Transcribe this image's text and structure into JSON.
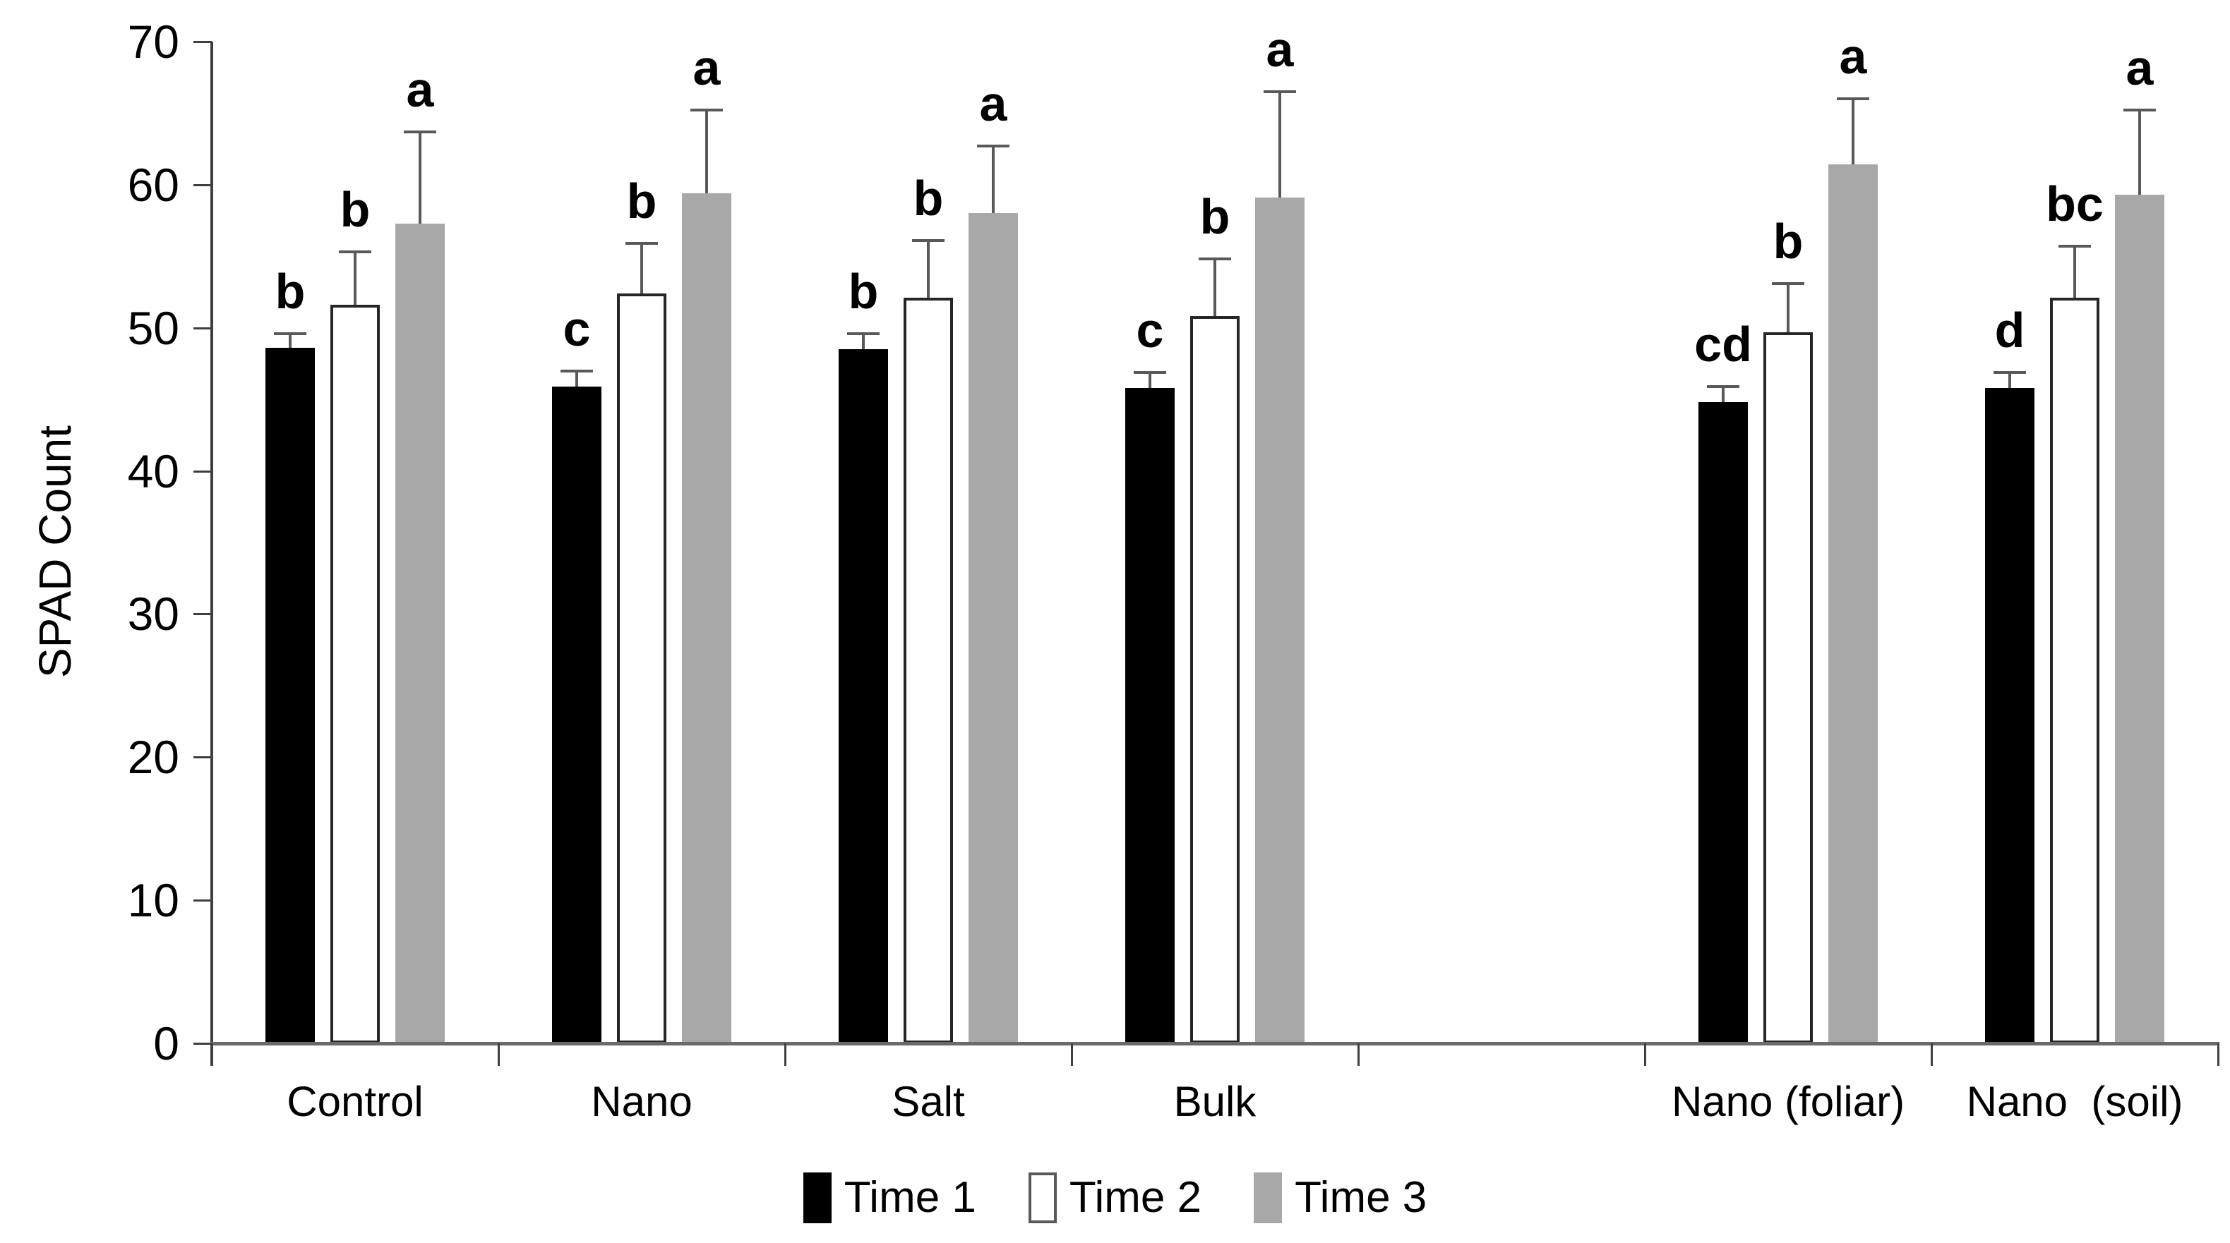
{
  "chart_data": {
    "type": "bar",
    "title": "",
    "ylabel": "SPAD Count",
    "xlabel": "",
    "ylim": [
      0,
      70
    ],
    "yticks": [
      0,
      10,
      20,
      30,
      40,
      50,
      60,
      70
    ],
    "grid": false,
    "legend_position": "bottom",
    "categories": [
      "Control",
      "Nano",
      "Salt",
      "Bulk",
      "Nano (foliar)",
      "Nano  (soil)"
    ],
    "category_slots": [
      0,
      1,
      2,
      3,
      5,
      6
    ],
    "slot_count": 7,
    "error_bar_color": "#595959",
    "axis_color": "#6a6a6a",
    "series": [
      {
        "name": "Time 1",
        "fill": "#000000",
        "border": "#000000",
        "values": [
          48.6,
          45.9,
          48.5,
          45.8,
          44.8,
          45.8
        ],
        "errors_up": [
          1.0,
          1.1,
          1.1,
          1.1,
          1.1,
          1.1
        ],
        "letters": [
          "b",
          "c",
          "b",
          "c",
          "cd",
          "d"
        ]
      },
      {
        "name": "Time 2",
        "fill": "#ffffff",
        "border": "#262626",
        "values": [
          51.6,
          52.4,
          52.1,
          50.8,
          49.7,
          52.1
        ],
        "errors_up": [
          3.7,
          3.5,
          4.0,
          4.0,
          3.4,
          3.6
        ],
        "letters": [
          "b",
          "b",
          "b",
          "b",
          "b",
          "bc"
        ]
      },
      {
        "name": "Time 3",
        "fill": "#a8a8a8",
        "border": "#a8a8a8",
        "values": [
          57.3,
          59.4,
          58.0,
          59.1,
          61.4,
          59.3
        ],
        "errors_up": [
          6.4,
          5.8,
          4.7,
          7.4,
          4.6,
          5.9
        ],
        "letters": [
          "a",
          "a",
          "a",
          "a",
          "a",
          "a"
        ]
      }
    ]
  }
}
